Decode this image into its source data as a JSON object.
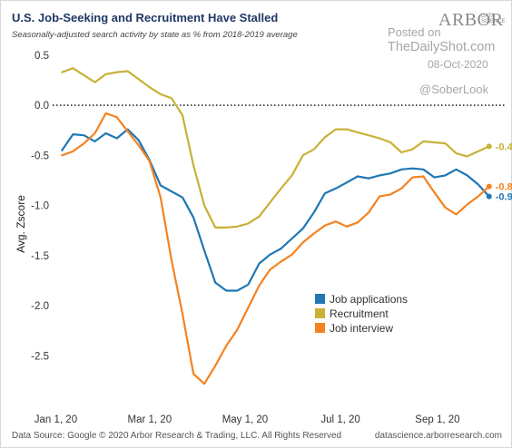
{
  "header": {
    "title": "U.S. Job-Seeking and Recruitment Have Stalled",
    "subtitle": "Seasonally-adjusted search activity by state as % from 2018-2019 average"
  },
  "watermark": {
    "logo": "ARBOR",
    "logo_sub": "DATA SCIENCE",
    "posted": "Posted on",
    "site": "TheDailyShot.com",
    "date": "08-Oct-2020",
    "handle": "@SoberLook"
  },
  "footer": {
    "source": "Data Source: Google © 2020 Arbor Research & Trading, LLC. All Rights Reserved",
    "credit": "datascience.arborresearch.com"
  },
  "chart_data": {
    "type": "line",
    "title": "U.S. Job-Seeking and Recruitment Have Stalled",
    "subtitle": "Seasonally-adjusted search activity by state as % from 2018-2019 average",
    "xlabel": "",
    "ylabel": "Avg. Zscore",
    "x_range": [
      "2019-12-30",
      "2020-10-14"
    ],
    "ylim": [
      -2.95,
      0.58
    ],
    "x_ticks": [
      {
        "date": "2020-01-01",
        "label": "Jan 1, 20"
      },
      {
        "date": "2020-03-01",
        "label": "Mar 1, 20"
      },
      {
        "date": "2020-05-01",
        "label": "May 1, 20"
      },
      {
        "date": "2020-07-01",
        "label": "Jul 1, 20"
      },
      {
        "date": "2020-09-01",
        "label": "Sep 1, 20"
      }
    ],
    "y_ticks": [
      0.5,
      0.0,
      -0.5,
      -1.0,
      -1.5,
      -2.0,
      -2.5
    ],
    "y_tick_labels": [
      "0.5",
      "0.0",
      "-0.5",
      "-1.0",
      "-1.5",
      "-2.0",
      "-2.5"
    ],
    "reference_line": {
      "y": 0.0,
      "style": "dotted"
    },
    "grid": false,
    "legend_position": "bottom-right",
    "series": [
      {
        "name": "Job applications",
        "color": "#1f77b4",
        "end_label": "-0.9",
        "points": [
          [
            "2020-01-05",
            -0.45
          ],
          [
            "2020-01-12",
            -0.29
          ],
          [
            "2020-01-19",
            -0.3
          ],
          [
            "2020-01-26",
            -0.36
          ],
          [
            "2020-02-02",
            -0.28
          ],
          [
            "2020-02-09",
            -0.33
          ],
          [
            "2020-02-16",
            -0.24
          ],
          [
            "2020-02-23",
            -0.35
          ],
          [
            "2020-03-01",
            -0.55
          ],
          [
            "2020-03-08",
            -0.8
          ],
          [
            "2020-03-15",
            -0.86
          ],
          [
            "2020-03-22",
            -0.92
          ],
          [
            "2020-03-29",
            -1.12
          ],
          [
            "2020-04-05",
            -1.45
          ],
          [
            "2020-04-12",
            -1.77
          ],
          [
            "2020-04-19",
            -1.85
          ],
          [
            "2020-04-26",
            -1.85
          ],
          [
            "2020-05-03",
            -1.79
          ],
          [
            "2020-05-10",
            -1.58
          ],
          [
            "2020-05-17",
            -1.49
          ],
          [
            "2020-05-24",
            -1.43
          ],
          [
            "2020-05-31",
            -1.33
          ],
          [
            "2020-06-07",
            -1.23
          ],
          [
            "2020-06-14",
            -1.07
          ],
          [
            "2020-06-21",
            -0.88
          ],
          [
            "2020-06-28",
            -0.83
          ],
          [
            "2020-07-05",
            -0.77
          ],
          [
            "2020-07-12",
            -0.71
          ],
          [
            "2020-07-19",
            -0.73
          ],
          [
            "2020-07-26",
            -0.7
          ],
          [
            "2020-08-02",
            -0.68
          ],
          [
            "2020-08-09",
            -0.64
          ],
          [
            "2020-08-16",
            -0.63
          ],
          [
            "2020-08-23",
            -0.64
          ],
          [
            "2020-08-30",
            -0.72
          ],
          [
            "2020-09-06",
            -0.7
          ],
          [
            "2020-09-13",
            -0.64
          ],
          [
            "2020-09-20",
            -0.7
          ],
          [
            "2020-09-27",
            -0.79
          ],
          [
            "2020-10-04",
            -0.91
          ]
        ]
      },
      {
        "name": "Recruitment",
        "color": "#c8b136",
        "end_label": "-0.4",
        "points": [
          [
            "2020-01-05",
            0.33
          ],
          [
            "2020-01-12",
            0.37
          ],
          [
            "2020-01-19",
            0.3
          ],
          [
            "2020-01-26",
            0.23
          ],
          [
            "2020-02-02",
            0.31
          ],
          [
            "2020-02-09",
            0.33
          ],
          [
            "2020-02-16",
            0.34
          ],
          [
            "2020-02-23",
            0.26
          ],
          [
            "2020-03-01",
            0.18
          ],
          [
            "2020-03-08",
            0.11
          ],
          [
            "2020-03-15",
            0.07
          ],
          [
            "2020-03-22",
            -0.1
          ],
          [
            "2020-03-29",
            -0.6
          ],
          [
            "2020-04-05",
            -1.0
          ],
          [
            "2020-04-12",
            -1.22
          ],
          [
            "2020-04-19",
            -1.22
          ],
          [
            "2020-04-26",
            -1.21
          ],
          [
            "2020-05-03",
            -1.18
          ],
          [
            "2020-05-10",
            -1.11
          ],
          [
            "2020-05-17",
            -0.97
          ],
          [
            "2020-05-24",
            -0.83
          ],
          [
            "2020-05-31",
            -0.7
          ],
          [
            "2020-06-07",
            -0.5
          ],
          [
            "2020-06-14",
            -0.44
          ],
          [
            "2020-06-21",
            -0.32
          ],
          [
            "2020-06-28",
            -0.24
          ],
          [
            "2020-07-05",
            -0.24
          ],
          [
            "2020-07-12",
            -0.27
          ],
          [
            "2020-07-19",
            -0.3
          ],
          [
            "2020-07-26",
            -0.33
          ],
          [
            "2020-08-02",
            -0.37
          ],
          [
            "2020-08-09",
            -0.47
          ],
          [
            "2020-08-16",
            -0.44
          ],
          [
            "2020-08-23",
            -0.36
          ],
          [
            "2020-08-30",
            -0.37
          ],
          [
            "2020-09-06",
            -0.38
          ],
          [
            "2020-09-13",
            -0.48
          ],
          [
            "2020-09-20",
            -0.51
          ],
          [
            "2020-09-27",
            -0.46
          ],
          [
            "2020-10-04",
            -0.41
          ]
        ]
      },
      {
        "name": "Job interview",
        "color": "#f58220",
        "end_label": "-0.8",
        "points": [
          [
            "2020-01-05",
            -0.5
          ],
          [
            "2020-01-12",
            -0.46
          ],
          [
            "2020-01-19",
            -0.38
          ],
          [
            "2020-01-26",
            -0.28
          ],
          [
            "2020-02-02",
            -0.08
          ],
          [
            "2020-02-09",
            -0.12
          ],
          [
            "2020-02-16",
            -0.26
          ],
          [
            "2020-02-23",
            -0.4
          ],
          [
            "2020-03-01",
            -0.56
          ],
          [
            "2020-03-08",
            -0.92
          ],
          [
            "2020-03-15",
            -1.55
          ],
          [
            "2020-03-22",
            -2.08
          ],
          [
            "2020-03-29",
            -2.68
          ],
          [
            "2020-04-05",
            -2.78
          ],
          [
            "2020-04-12",
            -2.6
          ],
          [
            "2020-04-19",
            -2.4
          ],
          [
            "2020-04-26",
            -2.24
          ],
          [
            "2020-05-03",
            -2.02
          ],
          [
            "2020-05-10",
            -1.8
          ],
          [
            "2020-05-17",
            -1.64
          ],
          [
            "2020-05-24",
            -1.56
          ],
          [
            "2020-05-31",
            -1.49
          ],
          [
            "2020-06-07",
            -1.37
          ],
          [
            "2020-06-14",
            -1.28
          ],
          [
            "2020-06-21",
            -1.2
          ],
          [
            "2020-06-28",
            -1.16
          ],
          [
            "2020-07-05",
            -1.21
          ],
          [
            "2020-07-12",
            -1.17
          ],
          [
            "2020-07-19",
            -1.07
          ],
          [
            "2020-07-26",
            -0.91
          ],
          [
            "2020-08-02",
            -0.89
          ],
          [
            "2020-08-09",
            -0.83
          ],
          [
            "2020-08-16",
            -0.72
          ],
          [
            "2020-08-23",
            -0.71
          ],
          [
            "2020-08-30",
            -0.87
          ],
          [
            "2020-09-06",
            -1.02
          ],
          [
            "2020-09-13",
            -1.09
          ],
          [
            "2020-09-20",
            -0.99
          ],
          [
            "2020-09-27",
            -0.91
          ],
          [
            "2020-10-04",
            -0.81
          ]
        ]
      }
    ]
  }
}
